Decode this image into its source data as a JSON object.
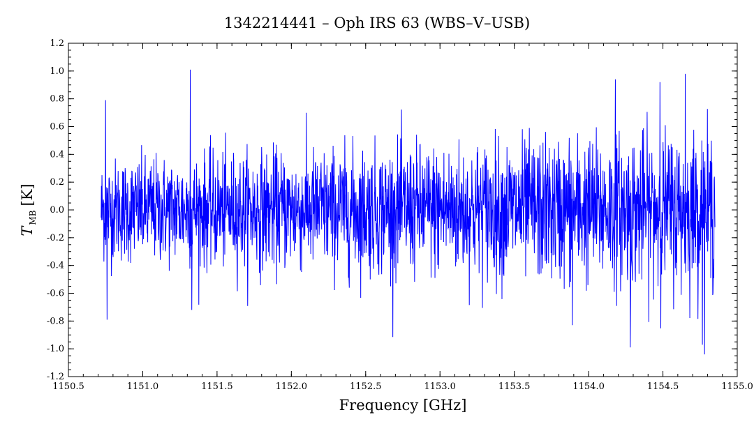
{
  "chart_data": {
    "type": "line",
    "title": "1342214441 – Oph IRS 63 (WBS–V–USB)",
    "xlabel": "Frequency [GHz]",
    "ylabel_main": "T",
    "ylabel_sub": "MB",
    "ylabel_unit": "[K]",
    "xlim": [
      1150.5,
      1155.0
    ],
    "ylim": [
      -1.2,
      1.2
    ],
    "xticks": [
      "1150.5",
      "1151.0",
      "1151.5",
      "1152.0",
      "1152.5",
      "1153.0",
      "1153.5",
      "1154.0",
      "1154.5",
      "1155.0"
    ],
    "xtick_values": [
      1150.5,
      1151.0,
      1151.5,
      1152.0,
      1152.5,
      1153.0,
      1153.5,
      1154.0,
      1154.5,
      1155.0
    ],
    "yticks": [
      "-1.2",
      "-1.0",
      "-0.8",
      "-0.6",
      "-0.4",
      "-0.2",
      "0.0",
      "0.2",
      "0.4",
      "0.6",
      "0.8",
      "1.0",
      "1.2"
    ],
    "ytick_values": [
      -1.2,
      -1.0,
      -0.8,
      -0.6,
      -0.4,
      -0.2,
      0.0,
      0.2,
      0.4,
      0.6,
      0.8,
      1.0,
      1.2
    ],
    "grid": false,
    "series": [
      {
        "color": "#0000ff",
        "x_start": 1150.72,
        "x_end": 1154.85,
        "baseline": 0.0,
        "noise_sigma_low_freq": 0.18,
        "noise_sigma_high_freq": 0.28,
        "peaks": [
          {
            "x": 1151.32,
            "y": 1.01
          },
          {
            "x": 1154.65,
            "y": 0.98
          },
          {
            "x": 1154.18,
            "y": 0.94
          },
          {
            "x": 1154.48,
            "y": 0.92
          },
          {
            "x": 1150.75,
            "y": 0.79
          },
          {
            "x": 1151.33,
            "y": -0.72
          },
          {
            "x": 1150.76,
            "y": -0.79
          },
          {
            "x": 1153.89,
            "y": -0.83
          },
          {
            "x": 1154.28,
            "y": -0.99
          },
          {
            "x": 1154.78,
            "y": -1.04
          }
        ]
      }
    ]
  }
}
